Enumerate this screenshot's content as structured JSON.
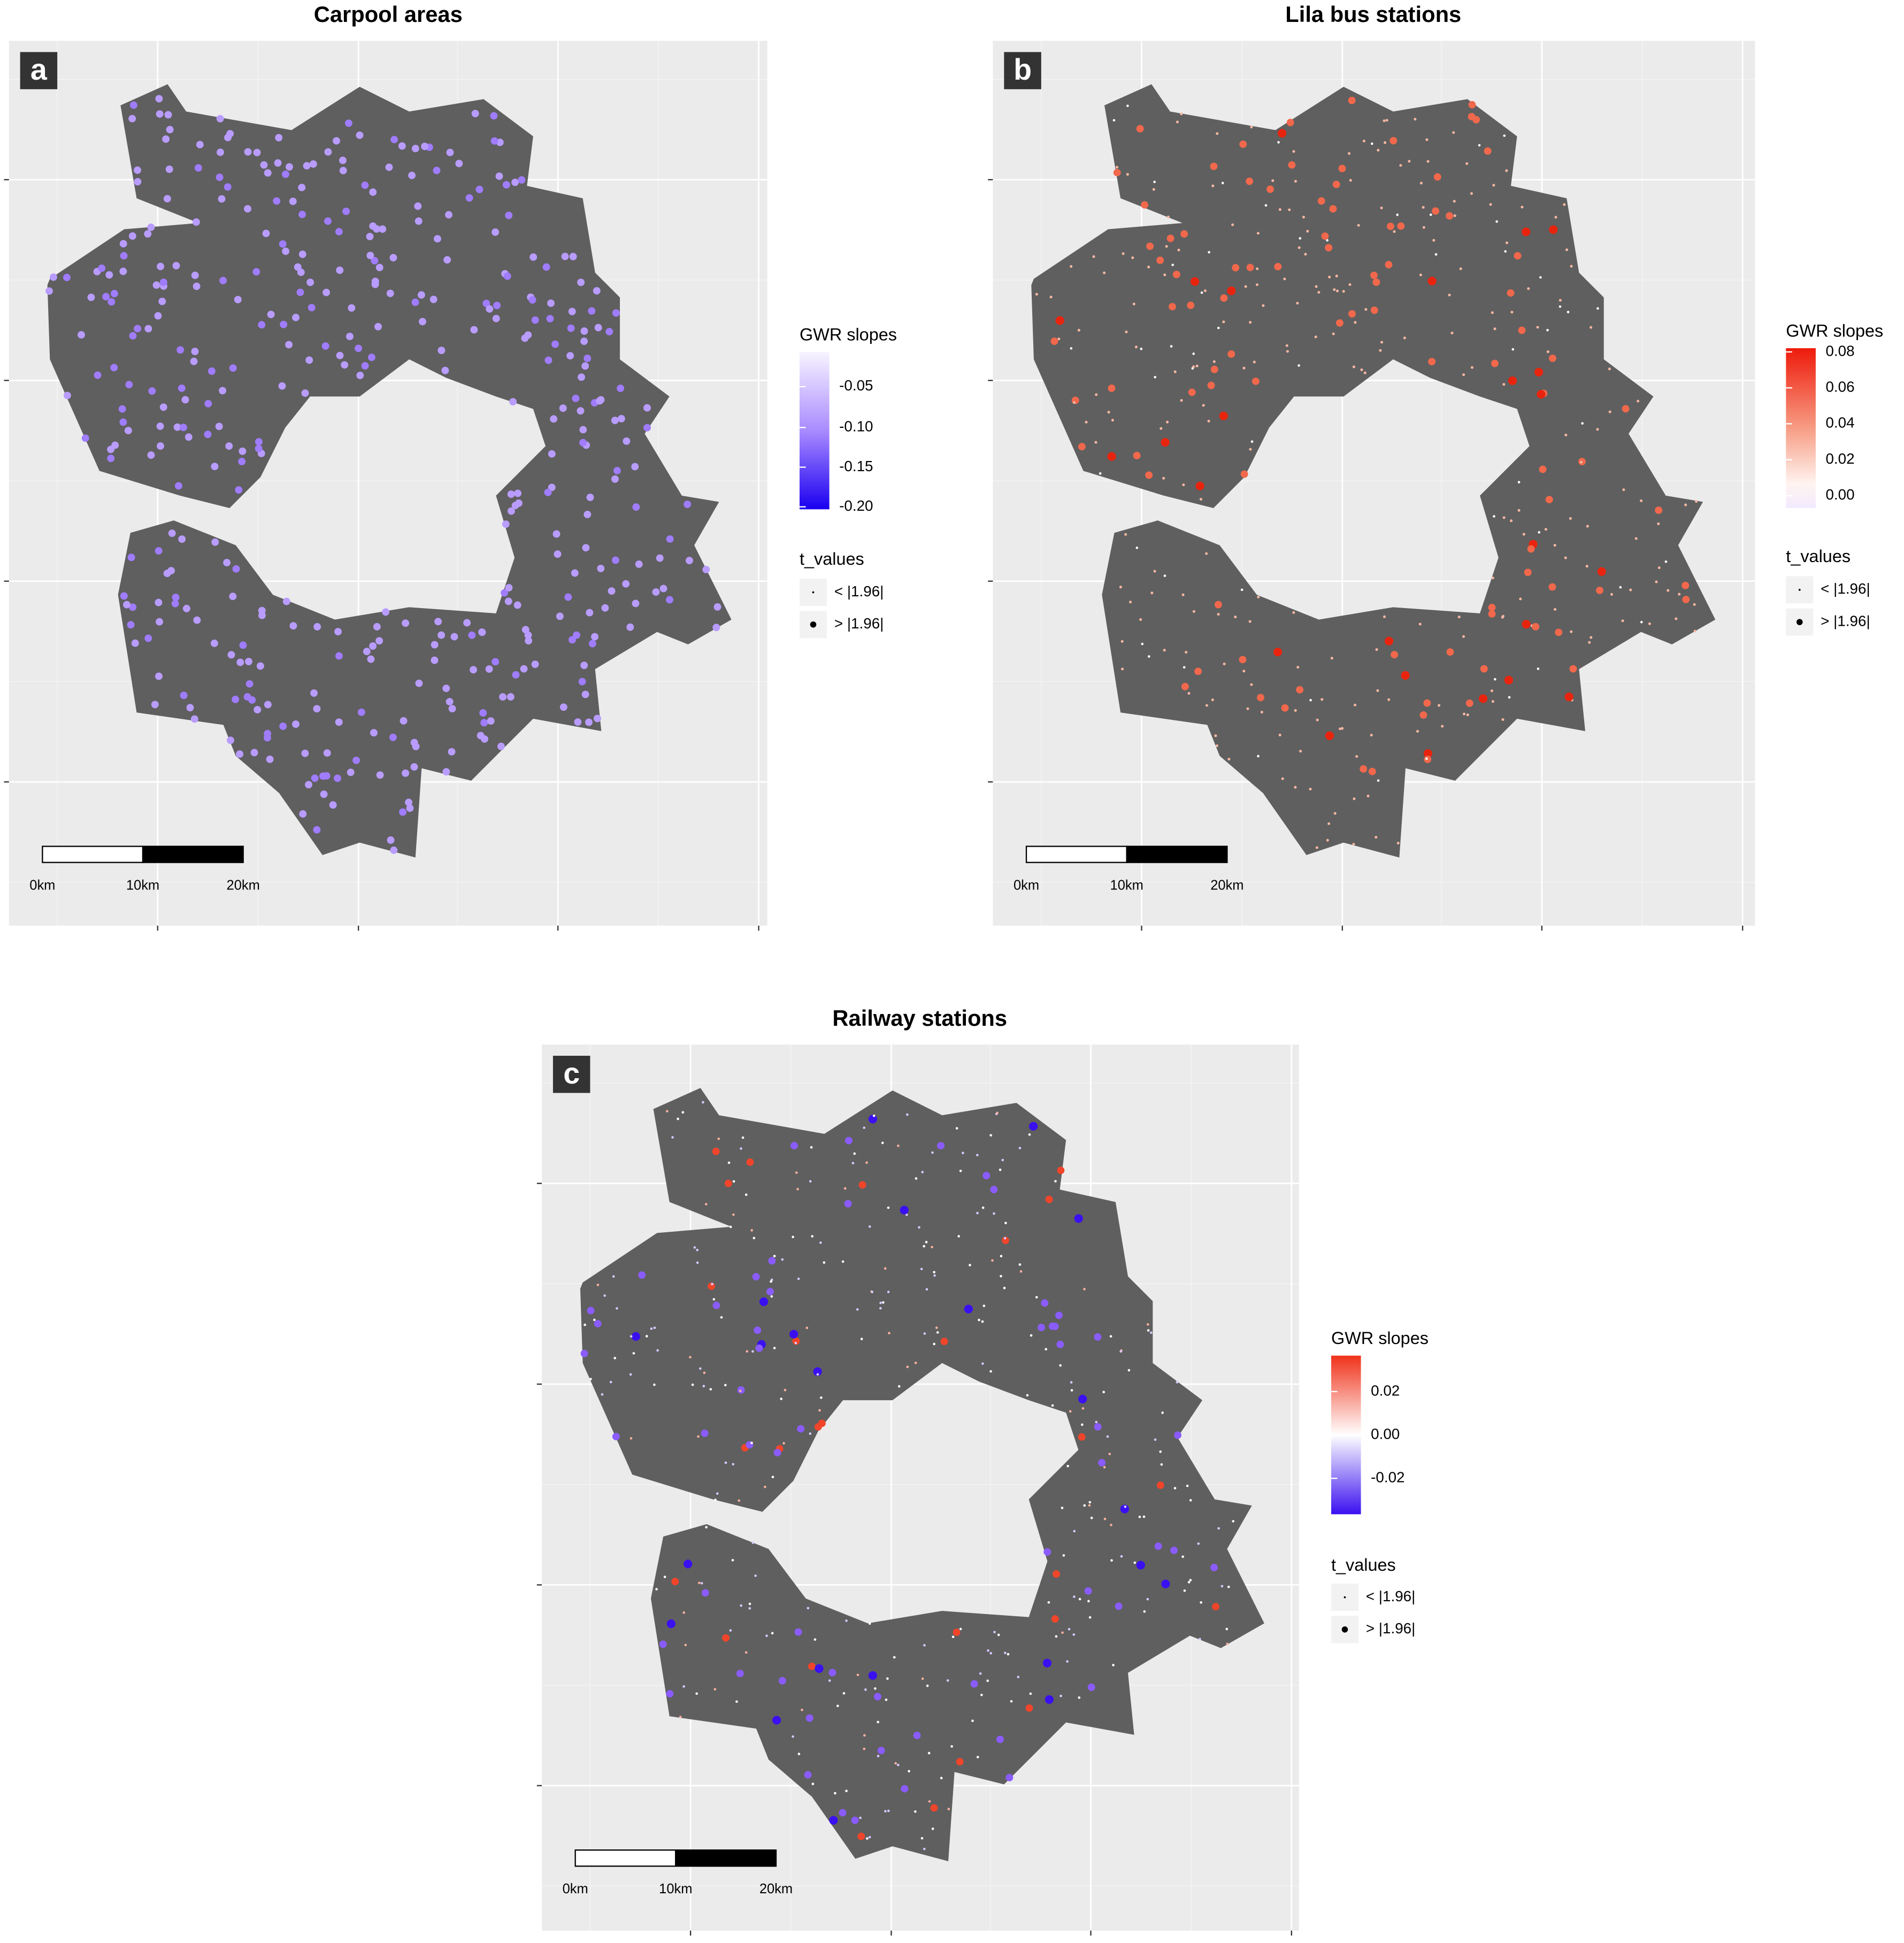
{
  "panels": [
    {
      "letter": "a",
      "title": "Carpool areas",
      "legend": {
        "title": "GWR slopes",
        "labels": [
          "-0.05",
          "-0.10",
          "-0.15",
          "-0.20"
        ]
      },
      "t_values": {
        "title": "t_values",
        "items": [
          "< |1.96|",
          "> |1.96|"
        ]
      },
      "scale_bar": [
        "0km",
        "10km",
        "20km"
      ]
    },
    {
      "letter": "b",
      "title": "Lila bus stations",
      "legend": {
        "title": "GWR slopes",
        "labels": [
          "0.08",
          "0.06",
          "0.04",
          "0.02",
          "0.00"
        ]
      },
      "t_values": {
        "title": "t_values",
        "items": [
          "< |1.96|",
          "> |1.96|"
        ]
      },
      "scale_bar": [
        "0km",
        "10km",
        "20km"
      ]
    },
    {
      "letter": "c",
      "title": "Railway stations",
      "legend": {
        "title": "GWR slopes",
        "labels": [
          "0.02",
          "0.00",
          "-0.02"
        ]
      },
      "t_values": {
        "title": "t_values",
        "items": [
          "< |1.96|",
          "> |1.96|"
        ]
      },
      "scale_bar": [
        "0km",
        "10km",
        "20km"
      ]
    }
  ]
}
